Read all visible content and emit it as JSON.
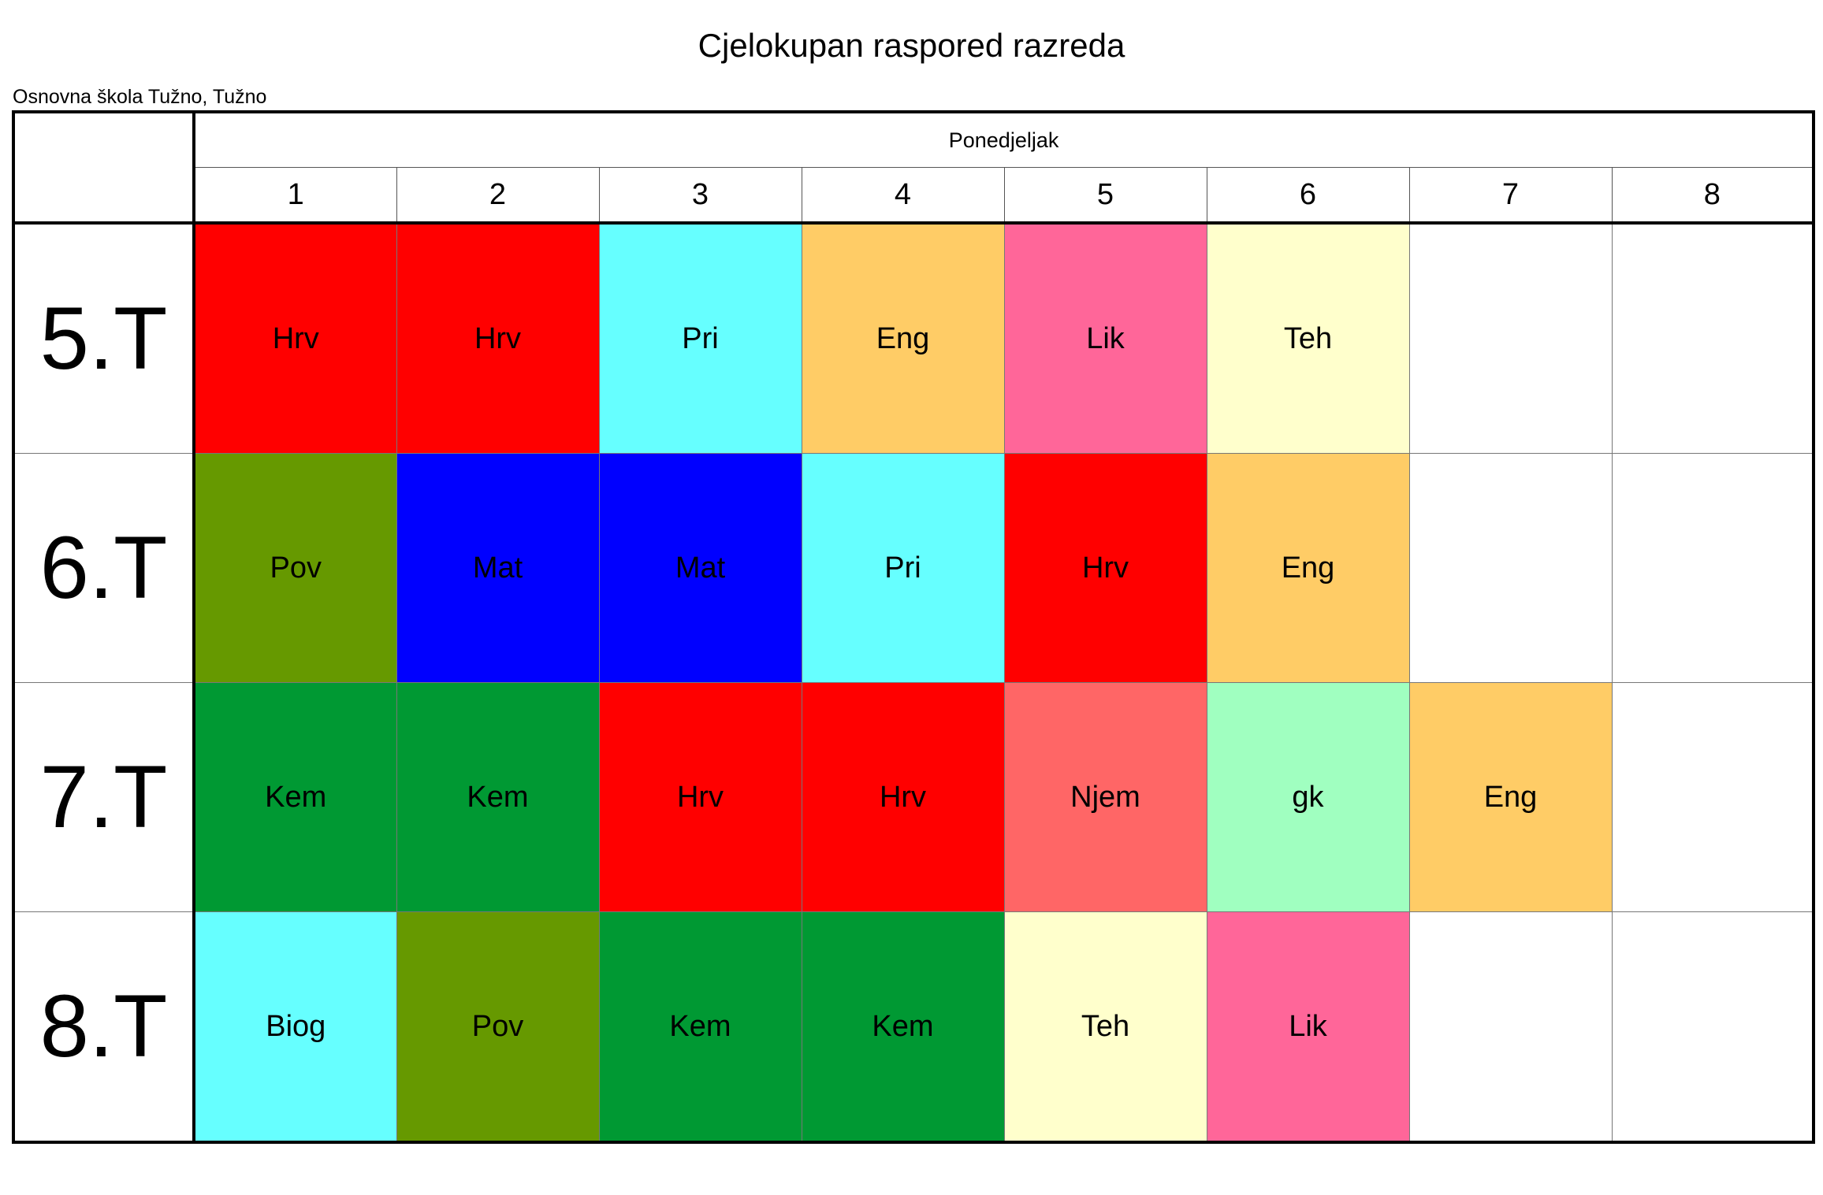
{
  "title": "Cjelokupan raspored razreda",
  "school": "Osnovna škola Tužno, Tužno",
  "day": "Ponedjeljak",
  "periods": [
    "1",
    "2",
    "3",
    "4",
    "5",
    "6",
    "7",
    "8"
  ],
  "subject_colors": {
    "Hrv": "#ff0000",
    "Pri": "#66ffff",
    "Eng": "#ffcc66",
    "Lik": "#ff6699",
    "Teh": "#ffffcc",
    "Pov": "#669900",
    "Mat": "#0000ff",
    "Kem": "#009933",
    "Njem": "#ff6666",
    "gk": "#a0ffc0",
    "Biog": "#66ffff"
  },
  "classes": [
    {
      "name": "5.T",
      "lessons": [
        "Hrv",
        "Hrv",
        "Pri",
        "Eng",
        "Lik",
        "Teh",
        "",
        ""
      ]
    },
    {
      "name": "6.T",
      "lessons": [
        "Pov",
        "Mat",
        "Mat",
        "Pri",
        "Hrv",
        "Eng",
        "",
        ""
      ]
    },
    {
      "name": "7.T",
      "lessons": [
        "Kem",
        "Kem",
        "Hrv",
        "Hrv",
        "Njem",
        "gk",
        "Eng",
        ""
      ]
    },
    {
      "name": "8.T",
      "lessons": [
        "Biog",
        "Pov",
        "Kem",
        "Kem",
        "Teh",
        "Lik",
        "",
        ""
      ]
    }
  ]
}
